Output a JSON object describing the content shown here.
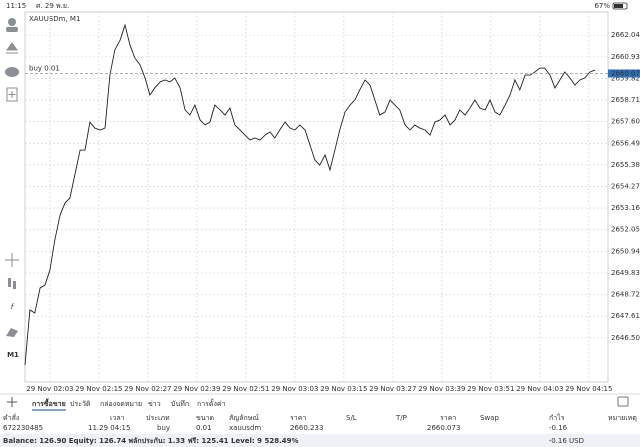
{
  "status_bar": {
    "time": "11:15",
    "date": "ศ. 29 พ.ย.",
    "battery": "67%"
  },
  "toolbar": {
    "timeframe": "M1"
  },
  "chart_data": {
    "type": "line",
    "title": "XAUUSDm, M1",
    "color": "#222222",
    "x": [
      -6.1,
      -4.9,
      -3.7,
      -2.4,
      -1.2,
      0.0,
      1.2,
      2.5,
      3.7,
      4.9,
      6.1,
      7.4,
      8.6,
      9.8,
      11.0,
      12.3,
      13.5,
      14.7,
      15.9,
      17.2,
      18.4,
      19.6,
      20.8,
      22.1,
      23.3,
      24.5,
      25.7,
      27.0,
      28.2,
      29.4,
      30.6,
      31.9,
      33.1,
      34.3,
      35.5,
      36.8,
      38.0,
      39.2,
      40.4,
      41.7,
      42.9,
      44.1,
      45.3,
      46.6,
      47.8,
      49.0,
      50.2,
      51.5,
      52.7,
      53.9,
      55.1,
      56.3,
      57.6,
      58.8,
      60.0,
      61.2,
      62.5,
      63.7,
      64.9,
      66.1,
      67.4,
      68.6,
      69.8,
      71.0,
      72.3,
      73.5,
      74.7,
      75.9,
      77.2,
      78.4,
      79.6,
      80.8,
      82.1,
      83.3,
      84.5,
      85.7,
      87.0,
      88.2,
      89.4,
      90.6,
      91.9,
      93.1,
      94.3,
      95.5,
      96.8,
      98.0,
      99.2,
      100.4,
      101.7,
      102.9,
      104.1,
      105.3,
      106.6,
      107.8,
      109.0,
      110.2,
      111.5,
      112.7,
      113.9,
      115.1,
      116.4,
      117.6,
      118.8,
      120.0,
      121.2,
      122.5,
      123.7,
      124.9,
      126.1,
      127.4,
      128.6,
      129.8,
      131.0,
      132.3,
      133.5
    ],
    "values": [
      2645.1,
      2647.93,
      2647.77,
      2649.06,
      2649.21,
      2649.98,
      2651.52,
      2652.81,
      2653.42,
      2653.68,
      2654.86,
      2656.14,
      2656.14,
      2657.58,
      2657.27,
      2657.17,
      2657.27,
      2659.99,
      2661.28,
      2661.79,
      2662.56,
      2661.54,
      2660.87,
      2660.51,
      2659.84,
      2658.97,
      2659.33,
      2659.64,
      2659.74,
      2659.64,
      2659.84,
      2659.33,
      2658.2,
      2657.94,
      2658.45,
      2657.68,
      2657.43,
      2657.58,
      2658.45,
      2658.2,
      2657.94,
      2658.3,
      2657.43,
      2657.17,
      2656.91,
      2656.66,
      2656.76,
      2656.66,
      2656.91,
      2657.07,
      2656.76,
      2657.17,
      2657.58,
      2657.27,
      2657.17,
      2657.43,
      2657.17,
      2656.4,
      2655.63,
      2655.37,
      2655.89,
      2655.12,
      2656.14,
      2657.17,
      2658.1,
      2658.45,
      2658.71,
      2659.23,
      2659.74,
      2659.48,
      2658.71,
      2657.94,
      2658.1,
      2658.71,
      2658.45,
      2658.2,
      2657.43,
      2657.17,
      2657.43,
      2657.27,
      2657.17,
      2656.91,
      2657.58,
      2657.68,
      2657.94,
      2657.43,
      2657.68,
      2658.2,
      2657.94,
      2658.3,
      2658.71,
      2658.3,
      2658.2,
      2658.71,
      2658.1,
      2657.94,
      2658.45,
      2658.97,
      2659.74,
      2659.23,
      2659.99,
      2659.99,
      2660.15,
      2660.35,
      2660.35,
      2659.99,
      2659.33,
      2659.74,
      2660.15,
      2659.84,
      2659.48,
      2659.74,
      2659.84,
      2660.15,
      2660.25
    ],
    "xlim": [
      -6.1,
      136.7
    ],
    "xticks": [
      {
        "value": 0,
        "label": "29 Nov 02:03"
      },
      {
        "value": 12,
        "label": "29 Nov 02:15"
      },
      {
        "value": 24,
        "label": "29 Nov 02:27"
      },
      {
        "value": 36,
        "label": "29 Nov 02:39"
      },
      {
        "value": 48,
        "label": "29 Nov 02:51"
      },
      {
        "value": 60,
        "label": "29 Nov 03:03"
      },
      {
        "value": 72,
        "label": "29 Nov 03:15"
      },
      {
        "value": 84,
        "label": "29 Nov 03:27"
      },
      {
        "value": 96,
        "label": "29 Nov 03:39"
      },
      {
        "value": 108,
        "label": "29 Nov 03:51"
      },
      {
        "value": 120,
        "label": "29 Nov 04:03"
      },
      {
        "value": 132,
        "label": "29 Nov 04:15"
      }
    ],
    "ylim": [
      2644.23,
      2663.23
    ],
    "yticks": [
      {
        "value": 2662.04,
        "label": "2662.040"
      },
      {
        "value": 2660.93,
        "label": "2660.930"
      },
      {
        "value": 2659.82,
        "label": "2659.820"
      },
      {
        "value": 2658.71,
        "label": "2658.710"
      },
      {
        "value": 2657.6,
        "label": "2657.600"
      },
      {
        "value": 2656.49,
        "label": "2656.490"
      },
      {
        "value": 2655.38,
        "label": "2655.380"
      },
      {
        "value": 2654.27,
        "label": "2654.270"
      },
      {
        "value": 2653.16,
        "label": "2653.160"
      },
      {
        "value": 2652.05,
        "label": "2652.050"
      },
      {
        "value": 2650.94,
        "label": "2650.940"
      },
      {
        "value": 2649.83,
        "label": "2649.830"
      },
      {
        "value": 2648.72,
        "label": "2648.720"
      },
      {
        "value": 2647.61,
        "label": "2647.610"
      },
      {
        "value": 2646.5,
        "label": "2646.500"
      }
    ],
    "grid": true,
    "buy_line": {
      "label": "buy 0.01",
      "price": 2660.073
    }
  },
  "tabs": [
    "การซื้อขาย",
    "ประวัติ",
    "กล่องจดหมาย",
    "ข่าว",
    "บันทึก",
    "การตั้งค่า"
  ],
  "table": {
    "headers": [
      "คำสั่ง",
      "เวลา",
      "ประเภท",
      "ขนาด",
      "สัญลักษณ์",
      "ราคา",
      "S/L",
      "T/P",
      "ราคา",
      "Swap",
      "กำไร",
      "หมายเหตุ"
    ],
    "row": {
      "order": "672230485",
      "time": "11.29 04:15",
      "type": "buy",
      "volume": "0.01",
      "symbol": "xauusdm",
      "price": "2660.233",
      "current_price": "2660.073",
      "profit": "-0.16"
    }
  },
  "balance": "Balance: 126.90 Equity: 126.74 พลักประกัน: 1.33 ฟรี: 125.41 Level: 9 528.49%",
  "total": "-0.16 USD"
}
